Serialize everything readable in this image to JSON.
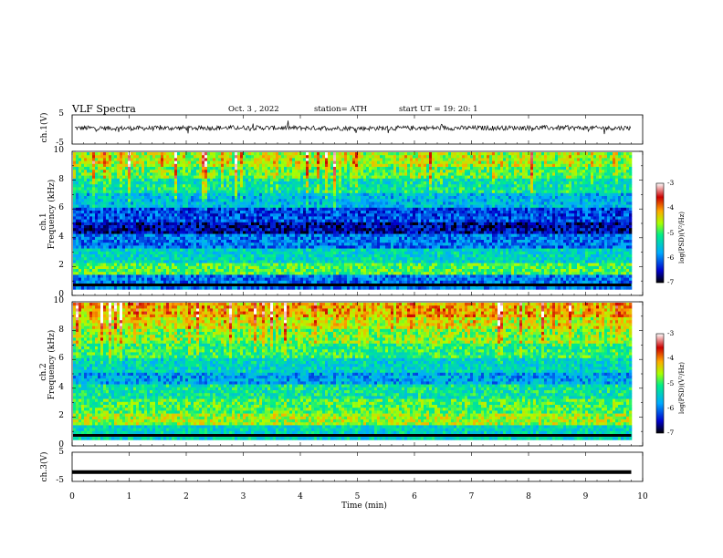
{
  "header": {
    "title": "VLF  Spectra",
    "date": "Oct. 3  , 2022",
    "station": "station= ATH",
    "start_ut": "start  UT  =    19: 20: 1"
  },
  "panels": {
    "ch1_wave": {
      "label": "ch.1(V)",
      "ticks": [
        "5",
        "-5"
      ]
    },
    "ch1_spec": {
      "label_ch": "ch.1",
      "label_freq": "Frequency  (kHz)",
      "ticks": [
        "10",
        "8",
        "6",
        "4",
        "2",
        "0"
      ]
    },
    "ch2_spec": {
      "label_ch": "ch.2",
      "label_freq": "Frequency  (kHz)",
      "ticks": [
        "10",
        "8",
        "6",
        "4",
        "2",
        "0"
      ]
    },
    "ch3_wave": {
      "label": "ch.3(V)",
      "ticks": [
        "5",
        "-5"
      ]
    }
  },
  "colorbar": {
    "ticks": [
      "-3",
      "-4",
      "-5",
      "-6",
      "-7"
    ],
    "label": "log(PSD)(V²/Hz)",
    "colors": [
      "#000000",
      "#0000cc",
      "#00aaff",
      "#00ee88",
      "#aaff00",
      "#ffaa00",
      "#cc0000",
      "#ffffff"
    ]
  },
  "xaxis": {
    "label": "Time  (min)",
    "ticks": [
      "0",
      "1",
      "2",
      "3",
      "4",
      "5",
      "6",
      "7",
      "8",
      "9",
      "10"
    ]
  },
  "chart_data": [
    {
      "type": "line",
      "panel": "ch.1(V)",
      "ylabel": "ch.1(V)",
      "ylim": [
        -5,
        5
      ],
      "xlim": [
        0,
        10
      ],
      "xlabel": "Time  (min)",
      "note_values": "noisy waveform oscillating around ~0.5 V, amplitude about ±1 V",
      "x": [
        0,
        1,
        2,
        3,
        4,
        5,
        6,
        7,
        8,
        9,
        9.8
      ],
      "y": [
        0.5,
        0.4,
        0.5,
        0.6,
        0.5,
        0.4,
        0.5,
        0.5,
        0.6,
        0.5,
        0.5
      ]
    },
    {
      "type": "heatmap",
      "panel": "ch.1",
      "ylabel": "Frequency  (kHz)",
      "ylim": [
        0,
        10
      ],
      "xlim": [
        0,
        10
      ],
      "zlabel": "log(PSD)(V²/Hz)",
      "zlim": [
        -7,
        -3
      ],
      "freq_bands_khz": [
        0,
        1,
        2,
        3,
        4,
        5,
        6,
        7,
        8,
        9,
        10
      ],
      "log_psd_by_band": [
        -6.0,
        -4.9,
        -5.4,
        -6.0,
        -6.6,
        -6.2,
        -5.6,
        -5.2,
        -4.8,
        -4.5
      ]
    },
    {
      "type": "heatmap",
      "panel": "ch.2",
      "ylabel": "Frequency  (kHz)",
      "ylim": [
        0,
        10
      ],
      "xlim": [
        0,
        10
      ],
      "zlabel": "log(PSD)(V²/Hz)",
      "zlim": [
        -7,
        -3
      ],
      "freq_bands_khz": [
        0,
        1,
        2,
        3,
        4,
        5,
        6,
        7,
        8,
        9,
        10
      ],
      "log_psd_by_band": [
        -5.4,
        -4.6,
        -4.9,
        -5.2,
        -5.8,
        -5.4,
        -5.0,
        -4.7,
        -4.4,
        -4.1
      ]
    },
    {
      "type": "line",
      "panel": "ch.3(V)",
      "ylabel": "ch.3(V)",
      "ylim": [
        -5,
        5
      ],
      "xlim": [
        0,
        10
      ],
      "x": [
        0,
        9.8
      ],
      "y": [
        -1.8,
        -1.8
      ]
    }
  ]
}
